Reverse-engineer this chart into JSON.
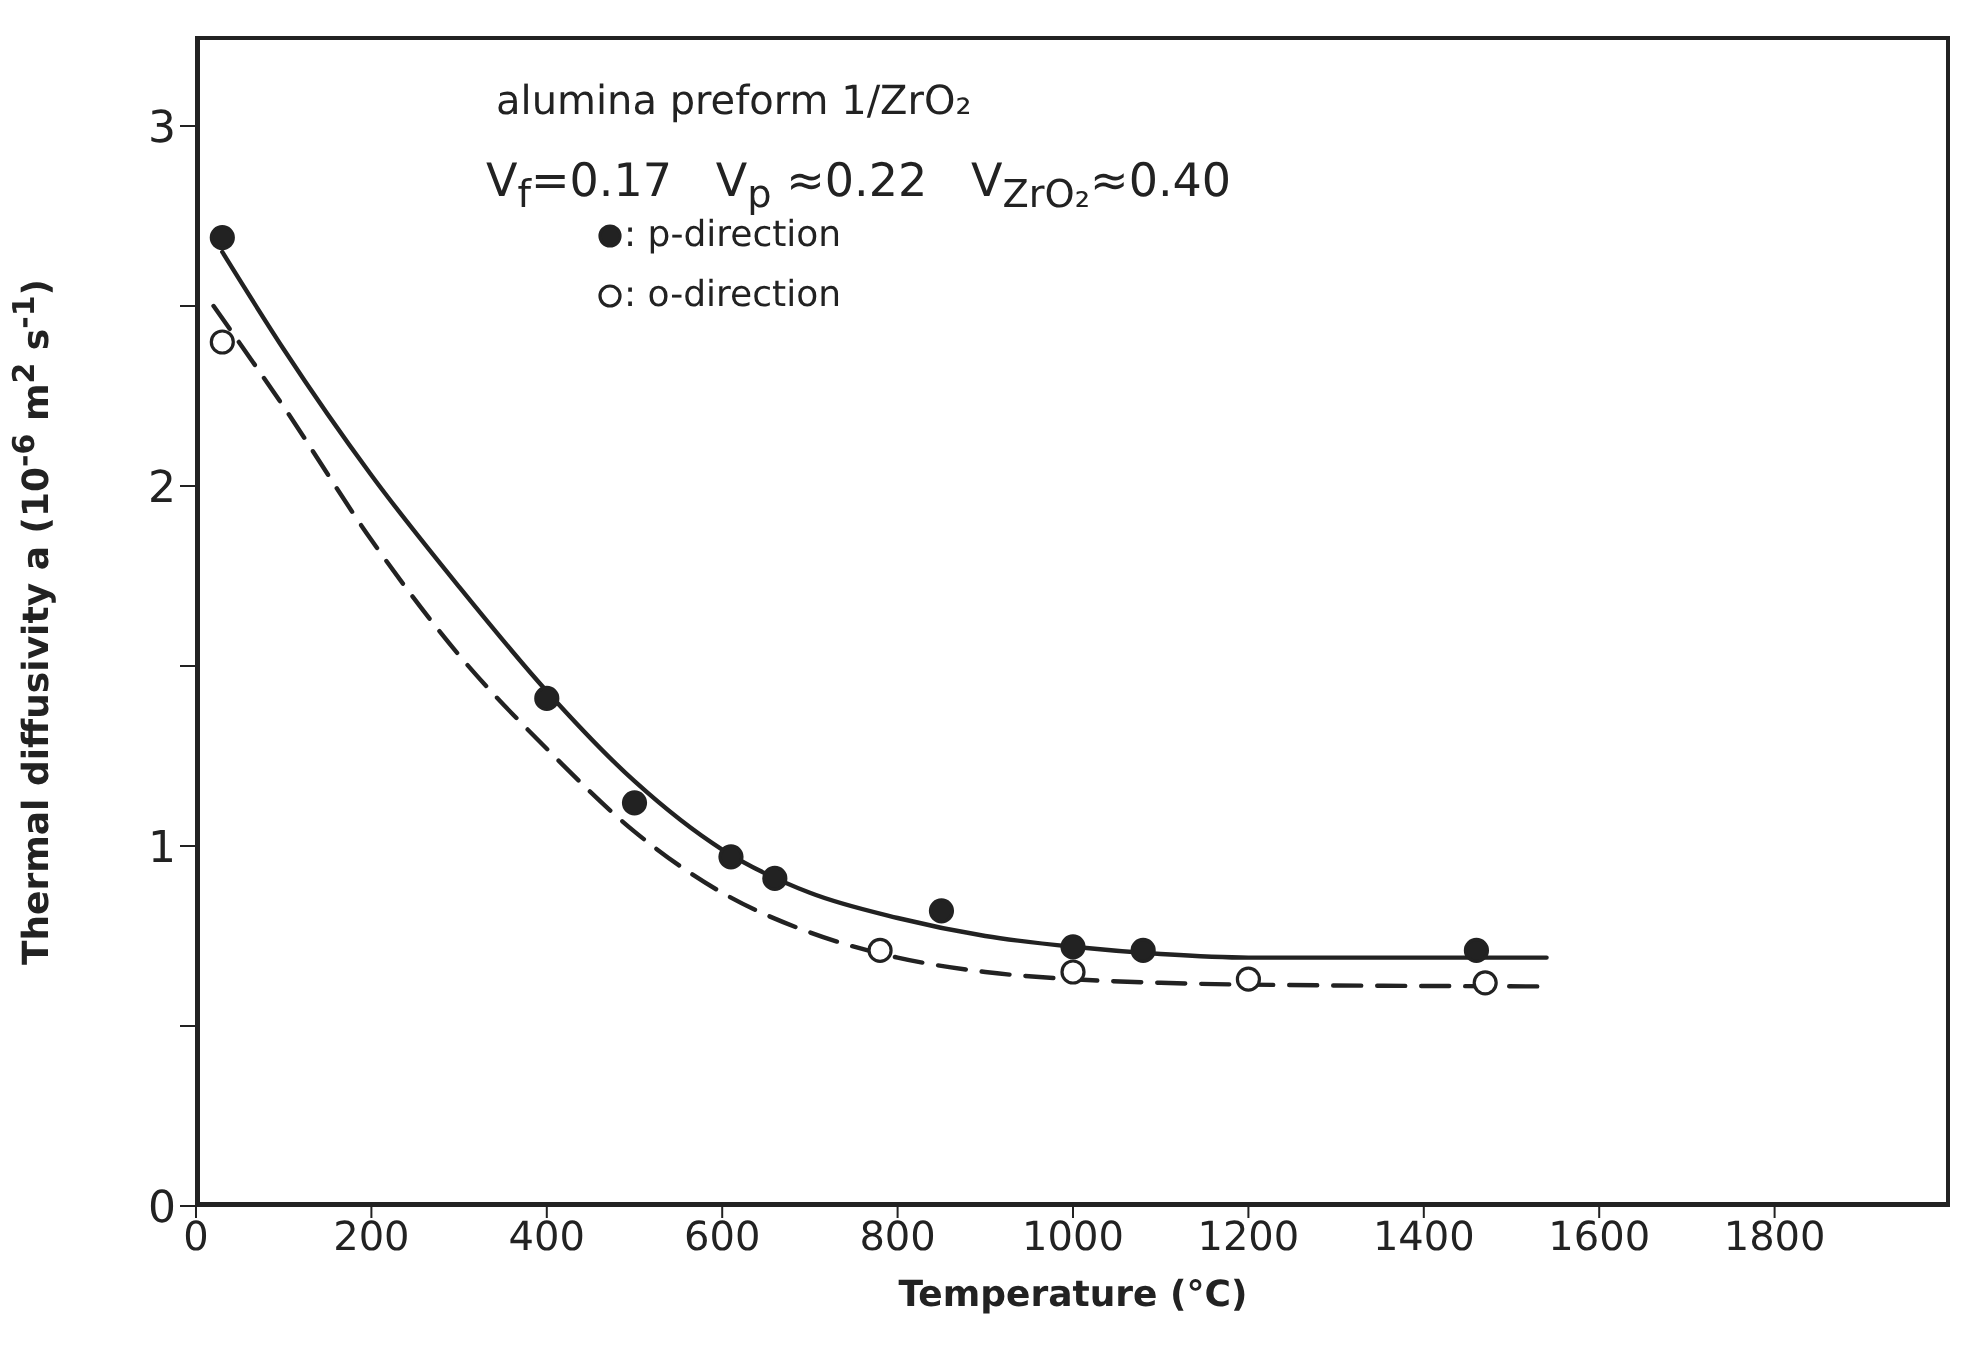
{
  "chart_data": {
    "type": "scatter",
    "xlabel": "Temperature (°C)",
    "ylabel": "Thermal diffusivity a (10$^{-6}$ m$^{2}$ s$^{-1}$)",
    "annotations": [
      "alumina preform 1/ZrO₂",
      "V$_{f}$=0.17   V$_{p}$ ≈0.22   V$_{ZrO₂}$≈0.40"
    ],
    "xlim": [
      0,
      2000
    ],
    "xticks": [
      0,
      200,
      400,
      600,
      800,
      1000,
      1200,
      1400,
      1600,
      1800
    ],
    "ylim": [
      0,
      3.25
    ],
    "yticks": [
      0,
      {
        "value": 0.5,
        "label": null
      },
      1,
      {
        "value": 1.5,
        "label": null
      },
      2,
      {
        "value": 2.5,
        "label": null
      },
      3
    ],
    "grid": false,
    "legend": "top left",
    "series": [
      {
        "name": ": p-direction",
        "marker": "circle",
        "color": "#222222",
        "x": [
          30,
          400,
          500,
          610,
          660,
          850,
          1000,
          1080,
          1460
        ],
        "values": [
          2.69,
          1.41,
          1.12,
          0.97,
          0.91,
          0.82,
          0.72,
          0.71,
          0.71
        ]
      },
      {
        "name": ": o-direction",
        "marker": "circle",
        "color": "#222222",
        "x": [
          30,
          780,
          1000,
          1200,
          1470
        ],
        "values": [
          2.4,
          0.71,
          0.65,
          0.63,
          0.62
        ]
      },
      {
        "type": "line",
        "marker": "none",
        "line_style": "solid",
        "color": "#222222",
        "x": [
          30,
          100,
          200,
          300,
          400,
          500,
          600,
          700,
          800,
          900,
          1000,
          1100,
          1200,
          1400,
          1540
        ],
        "values": [
          2.65,
          2.38,
          2.03,
          1.72,
          1.43,
          1.18,
          0.99,
          0.87,
          0.8,
          0.75,
          0.72,
          0.7,
          0.69,
          0.69,
          0.69
        ]
      },
      {
        "type": "line",
        "marker": "none",
        "line_style": "dashed",
        "color": "#222222",
        "x": [
          20,
          100,
          200,
          300,
          400,
          500,
          600,
          700,
          800,
          900,
          1000,
          1100,
          1200,
          1540
        ],
        "values": [
          2.5,
          2.22,
          1.85,
          1.53,
          1.27,
          1.04,
          0.87,
          0.76,
          0.69,
          0.65,
          0.63,
          0.62,
          0.615,
          0.61
        ]
      }
    ]
  }
}
